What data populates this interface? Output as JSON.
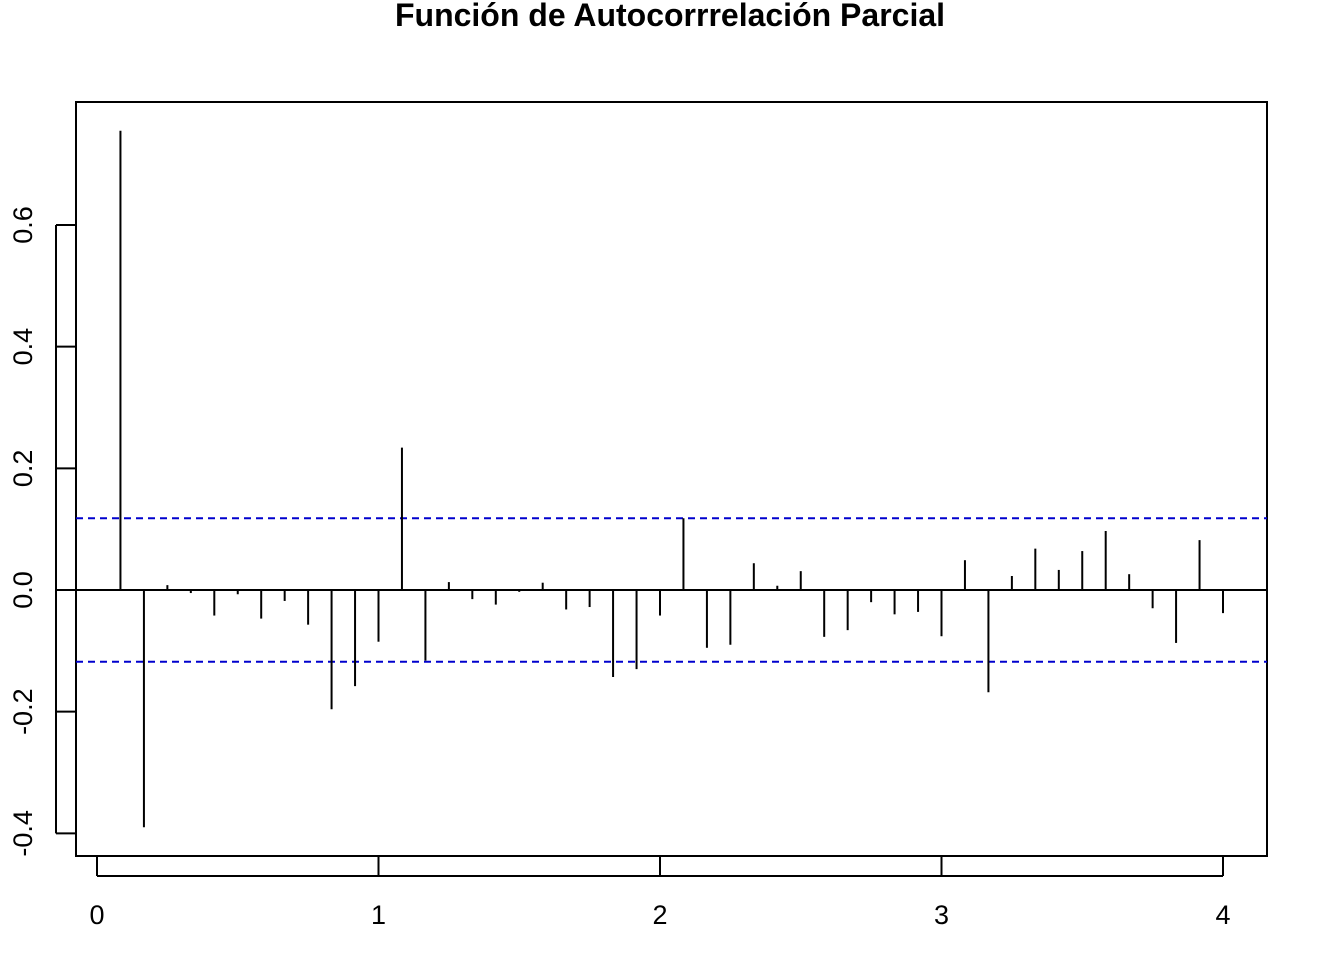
{
  "chart_data": {
    "type": "bar",
    "title": "Función de Autocorrrelación Parcial",
    "xlabel": "",
    "ylabel": "",
    "xlim": [
      0,
      4.1
    ],
    "ylim": [
      -0.42,
      0.78
    ],
    "xticks": [
      0,
      1,
      2,
      3,
      4
    ],
    "xtick_labels": [
      "0",
      "1",
      "2",
      "3",
      "4"
    ],
    "yticks": [
      -0.4,
      -0.2,
      0.0,
      0.2,
      0.4,
      0.6
    ],
    "ytick_labels": [
      "-0.4",
      "-0.2",
      "0.0",
      "0.2",
      "0.4",
      "0.6"
    ],
    "grid": false,
    "confidence_bound": 0.118,
    "confidence_color": "#0000CD",
    "bar_color": "#000000",
    "x": [
      0.0833,
      0.1667,
      0.25,
      0.3333,
      0.4167,
      0.5,
      0.5833,
      0.6667,
      0.75,
      0.8333,
      0.9167,
      1.0,
      1.0833,
      1.1667,
      1.25,
      1.3333,
      1.4167,
      1.5,
      1.5833,
      1.6667,
      1.75,
      1.8333,
      1.9167,
      2.0,
      2.0833,
      2.1667,
      2.25,
      2.3333,
      2.4167,
      2.5,
      2.5833,
      2.6667,
      2.75,
      2.8333,
      2.9167,
      3.0,
      3.0833,
      3.1667,
      3.25,
      3.3333,
      3.4167,
      3.5,
      3.5833,
      3.6667,
      3.75,
      3.8333,
      3.9167,
      4.0
    ],
    "values": [
      0.755,
      -0.39,
      0.008,
      -0.005,
      -0.042,
      -0.007,
      -0.047,
      -0.018,
      -0.057,
      -0.196,
      -0.158,
      -0.085,
      0.234,
      -0.116,
      0.013,
      -0.015,
      -0.024,
      -0.003,
      0.012,
      -0.032,
      -0.028,
      -0.143,
      -0.13,
      -0.042,
      0.118,
      -0.095,
      -0.09,
      0.044,
      0.007,
      0.031,
      -0.077,
      -0.066,
      -0.02,
      -0.04,
      -0.036,
      -0.076,
      0.049,
      -0.168,
      0.023,
      0.068,
      0.033,
      0.064,
      0.097,
      0.026,
      -0.03,
      -0.087,
      0.082,
      -0.038
    ]
  }
}
